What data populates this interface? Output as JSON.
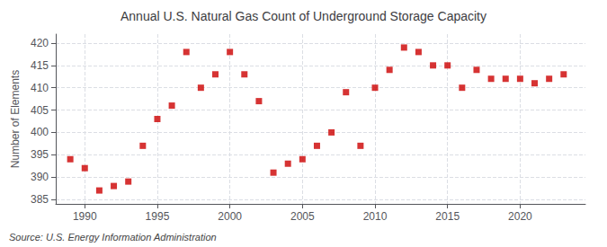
{
  "chart_data": {
    "type": "scatter",
    "title": "Annual U.S. Natural Gas Count of Underground Storage Capacity",
    "ylabel": "Number of Elements",
    "source": "Source: U.S. Energy Information Administration",
    "x": [
      1989,
      1990,
      1991,
      1992,
      1993,
      1994,
      1995,
      1996,
      1997,
      1998,
      1999,
      2000,
      2001,
      2002,
      2003,
      2004,
      2005,
      2006,
      2007,
      2008,
      2009,
      2010,
      2011,
      2012,
      2013,
      2014,
      2015,
      2016,
      2017,
      2018,
      2019,
      2020,
      2021,
      2022,
      2023
    ],
    "values": [
      394,
      392,
      387,
      388,
      389,
      397,
      403,
      406,
      418,
      410,
      413,
      418,
      413,
      407,
      391,
      393,
      394,
      397,
      400,
      409,
      397,
      410,
      414,
      419,
      418,
      415,
      415,
      410,
      414,
      412,
      412,
      412,
      411,
      412,
      413
    ],
    "color": "#cc0000",
    "marker": "square",
    "xlim": [
      1988.0,
      2024.5
    ],
    "xticks": [
      1990,
      1995,
      2000,
      2005,
      2010,
      2015,
      2020
    ],
    "ylim": [
      384,
      422
    ],
    "yticks": [
      385,
      390,
      395,
      400,
      405,
      410,
      415,
      420
    ],
    "grid": true
  }
}
